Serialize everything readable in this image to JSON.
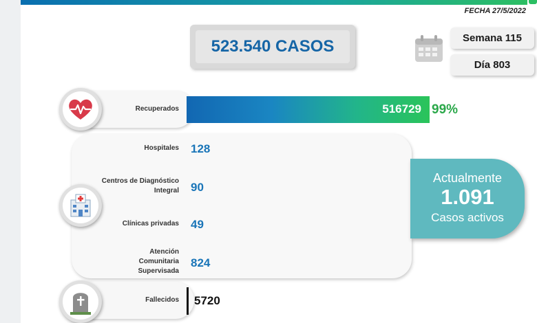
{
  "header": {
    "fecha": "FECHA 27/5/2022"
  },
  "summary": {
    "casos": "523.540 CASOS",
    "semana": "Semana 115",
    "dia": "Día 803"
  },
  "recuperados": {
    "label": "Recuperados",
    "value": "516729",
    "percent": "99%",
    "fill_fraction": 0.99
  },
  "hospitalizacion": [
    {
      "label": "Hospitales",
      "value": "128"
    },
    {
      "label": "Centros de Diagnóstico Integral",
      "value": "90"
    },
    {
      "label": "Clínicas privadas",
      "value": "49"
    },
    {
      "label": "Atención Comunitaria Supervisada",
      "value": "824"
    }
  ],
  "activos": {
    "line1": "Actualmente",
    "number": "1.091",
    "line3": "Casos activos"
  },
  "fallecidos": {
    "label": "Fallecidos",
    "value": "5720"
  },
  "icons": {
    "recuperados": "heart-pulse-icon",
    "hospital": "hospital-icon",
    "fallecidos": "tombstone-icon",
    "calendar": "calendar-icon"
  },
  "colors": {
    "accent_blue": "#1a75b8",
    "accent_green": "#2ba84a",
    "active_teal": "#5fb9bf",
    "heart_red": "#d83a4a"
  }
}
